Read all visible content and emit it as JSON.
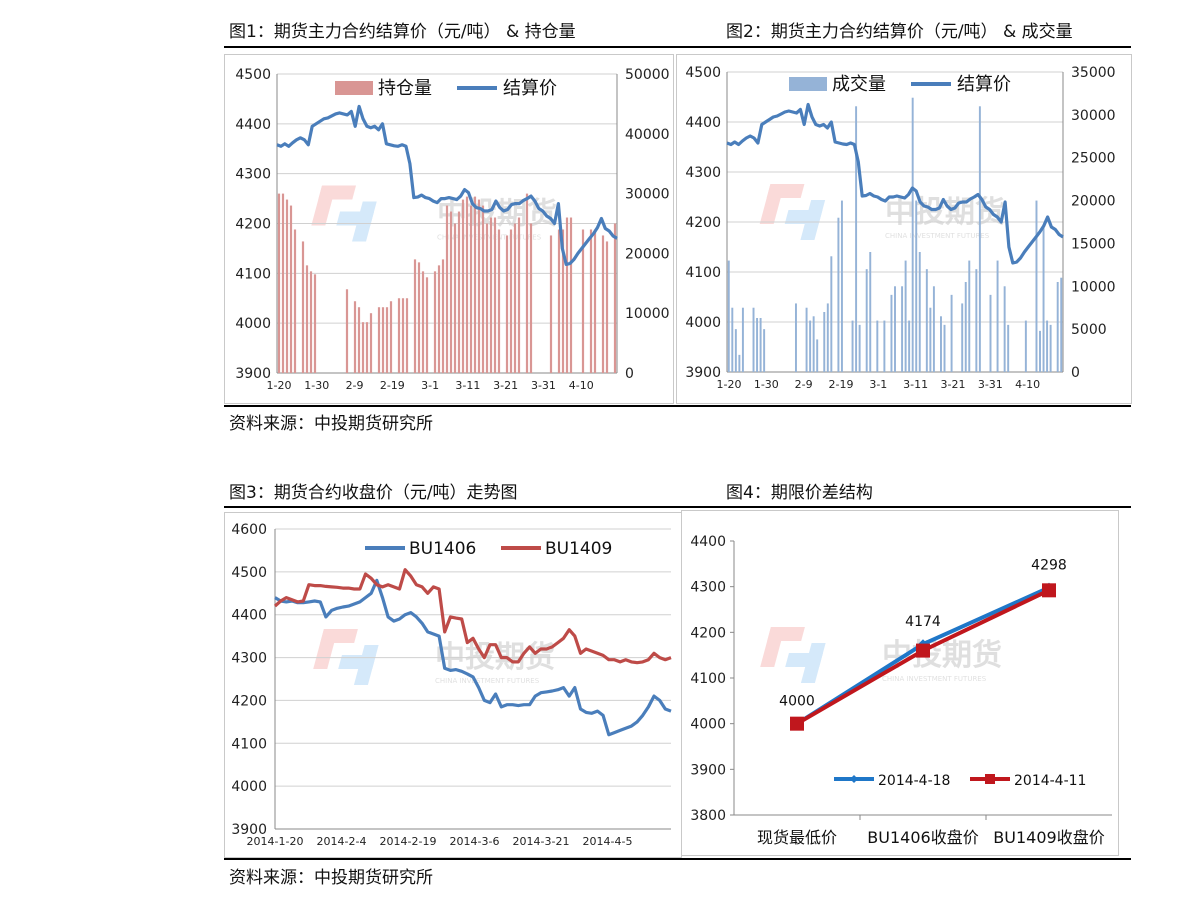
{
  "titles": {
    "fig1": "图1：期货主力合约结算价（元/吨） & 持仓量",
    "fig2": "图2：期货主力合约结算价（元/吨） & 成交量",
    "fig3": "图3：期货合约收盘价（元/吨）走势图",
    "fig4": "图4：期限价差结构"
  },
  "source": "资料来源：中投期货研究所",
  "watermark": {
    "cn": "中投期货",
    "en": "CHINA INVESTMENT FUTURES"
  },
  "colors": {
    "blue": "#4a7ebb",
    "pink": "#d99694",
    "lightblue": "#95b3d7",
    "red": "#be4b48",
    "blue4": "#1f77c8",
    "red4": "#c0171d"
  },
  "chart_data": [
    {
      "id": "fig1",
      "type": "bar",
      "y_left": {
        "min": 3900,
        "max": 4500,
        "ticks": [
          "3900",
          "4000",
          "4100",
          "4200",
          "4300",
          "4400",
          "4500"
        ]
      },
      "y_right": {
        "min": 0,
        "max": 50000,
        "ticks": [
          "0",
          "10000",
          "20000",
          "30000",
          "40000",
          "50000"
        ]
      },
      "x_ticks": [
        "1-20",
        "1-30",
        "2-9",
        "2-19",
        "3-1",
        "3-11",
        "3-21",
        "3-31",
        "4-10"
      ],
      "series": [
        {
          "name": "持仓量",
          "axis": "right",
          "kind": "bar",
          "values": [
            30000,
            30000,
            29000,
            28000,
            24000,
            null,
            22000,
            18000,
            17000,
            16500,
            null,
            null,
            null,
            null,
            null,
            null,
            null,
            14000,
            null,
            12000,
            11000,
            8500,
            8500,
            10000,
            null,
            11000,
            11000,
            11000,
            12000,
            null,
            12500,
            12500,
            12500,
            null,
            19000,
            18500,
            17000,
            16000,
            null,
            17000,
            18000,
            19000,
            28000,
            27000,
            25000,
            27000,
            29000,
            29500,
            28000,
            29500,
            29000,
            28000,
            25000,
            26000,
            26000,
            24000,
            null,
            23000,
            24000,
            25000,
            26000,
            null,
            30000,
            25000,
            null,
            null,
            null,
            null,
            23000,
            null,
            24000,
            24000,
            26000,
            26000,
            null,
            null,
            24000,
            null,
            24000,
            24000,
            null,
            23000,
            22000,
            null,
            25000
          ],
          "color": "#d99694"
        },
        {
          "name": "结算价",
          "axis": "left",
          "kind": "line",
          "values": [
            4358,
            4355,
            4360,
            4355,
            4362,
            4368,
            4372,
            4368,
            4358,
            4395,
            4400,
            4405,
            4410,
            4412,
            4416,
            4420,
            4422,
            4420,
            4418,
            4425,
            4395,
            4435,
            4410,
            4395,
            4392,
            4395,
            4388,
            4400,
            4360,
            4358,
            4356,
            4355,
            4358,
            4355,
            4320,
            4252,
            4253,
            4257,
            4252,
            4250,
            4245,
            4242,
            4250,
            4250,
            4252,
            4250,
            4248,
            4255,
            4268,
            4262,
            4240,
            4232,
            4230,
            4225,
            4225,
            4228,
            4245,
            4232,
            4225,
            4228,
            4238,
            4240,
            4240,
            4246,
            4250,
            4255,
            4245,
            4230,
            4225,
            4215,
            4210,
            4200,
            4240,
            4150,
            4118,
            4120,
            4128,
            4140,
            4150,
            4160,
            4170,
            4180,
            4192,
            4210,
            4190,
            4185,
            4175,
            4170
          ],
          "color": "#4a7ebb"
        }
      ]
    },
    {
      "id": "fig2",
      "type": "bar",
      "y_left": {
        "min": 3900,
        "max": 4500,
        "ticks": [
          "3900",
          "4000",
          "4100",
          "4200",
          "4300",
          "4400",
          "4500"
        ]
      },
      "y_right": {
        "min": 0,
        "max": 35000,
        "ticks": [
          "0",
          "5000",
          "10000",
          "15000",
          "20000",
          "25000",
          "30000",
          "35000"
        ]
      },
      "x_ticks": [
        "1-20",
        "1-30",
        "2-9",
        "2-19",
        "3-1",
        "3-11",
        "3-21",
        "3-31",
        "4-10"
      ],
      "series": [
        {
          "name": "成交量",
          "axis": "right",
          "kind": "bar",
          "values": [
            13000,
            7500,
            5000,
            2000,
            7500,
            null,
            null,
            7500,
            6300,
            6300,
            5000,
            null,
            null,
            null,
            null,
            null,
            null,
            null,
            null,
            8000,
            null,
            null,
            7500,
            6000,
            6500,
            3800,
            null,
            7000,
            8000,
            13500,
            null,
            18000,
            20000,
            null,
            null,
            6000,
            31000,
            5500,
            null,
            12000,
            14000,
            null,
            6000,
            null,
            6000,
            null,
            9000,
            10000,
            null,
            10000,
            13000,
            6000,
            32000,
            20000,
            14000,
            null,
            12000,
            7500,
            10000,
            null,
            6500,
            5500,
            null,
            9000,
            null,
            null,
            8000,
            10500,
            13000,
            null,
            12000,
            31000,
            null,
            null,
            9000,
            null,
            13000,
            null,
            10000,
            5500,
            null,
            null,
            null,
            null,
            6000,
            null,
            null,
            20000,
            4800,
            17000,
            6000,
            5500,
            null,
            10500,
            11000
          ],
          "color": "#95b3d7"
        },
        {
          "name": "结算价",
          "axis": "left",
          "kind": "line",
          "values": [
            4358,
            4355,
            4360,
            4355,
            4362,
            4368,
            4372,
            4368,
            4358,
            4395,
            4400,
            4405,
            4410,
            4412,
            4416,
            4420,
            4422,
            4420,
            4418,
            4425,
            4395,
            4435,
            4410,
            4395,
            4392,
            4395,
            4388,
            4400,
            4360,
            4358,
            4356,
            4355,
            4358,
            4355,
            4320,
            4252,
            4253,
            4257,
            4252,
            4250,
            4245,
            4242,
            4250,
            4250,
            4252,
            4250,
            4248,
            4255,
            4268,
            4262,
            4240,
            4232,
            4230,
            4225,
            4225,
            4228,
            4245,
            4232,
            4225,
            4228,
            4238,
            4240,
            4240,
            4246,
            4250,
            4255,
            4245,
            4230,
            4225,
            4215,
            4210,
            4200,
            4240,
            4150,
            4118,
            4120,
            4128,
            4140,
            4150,
            4160,
            4170,
            4180,
            4192,
            4210,
            4190,
            4185,
            4175,
            4170
          ],
          "color": "#4a7ebb"
        }
      ]
    },
    {
      "id": "fig3",
      "type": "line",
      "y_left": {
        "min": 3900,
        "max": 4600,
        "ticks": [
          "3900",
          "4000",
          "4100",
          "4200",
          "4300",
          "4400",
          "4500",
          "4600"
        ]
      },
      "x_ticks": [
        "2014-1-20",
        "2014-2-4",
        "2014-2-19",
        "2014-3-6",
        "2014-3-21",
        "2014-4-5"
      ],
      "series": [
        {
          "name": "BU1406",
          "values": [
            4440,
            4432,
            4430,
            4432,
            4428,
            4428,
            4430,
            4432,
            4430,
            4395,
            4410,
            4415,
            4418,
            4420,
            4425,
            4430,
            4440,
            4450,
            4480,
            4440,
            4395,
            4385,
            4390,
            4400,
            4405,
            4395,
            4380,
            4360,
            4355,
            4350,
            4275,
            4270,
            4272,
            4268,
            4262,
            4255,
            4230,
            4200,
            4195,
            4215,
            4185,
            4190,
            4190,
            4188,
            4190,
            4190,
            4210,
            4218,
            4220,
            4222,
            4225,
            4230,
            4210,
            4230,
            4180,
            4172,
            4170,
            4175,
            4165,
            4120,
            4125,
            4130,
            4135,
            4140,
            4150,
            4165,
            4185,
            4210,
            4200,
            4180,
            4175
          ],
          "color": "#4a7ebb"
        },
        {
          "name": "BU1409",
          "values": [
            4420,
            4432,
            4440,
            4435,
            4430,
            4432,
            4470,
            4468,
            4468,
            4466,
            4465,
            4464,
            4462,
            4462,
            4460,
            4460,
            4495,
            4485,
            4470,
            4465,
            4470,
            4465,
            4460,
            4505,
            4490,
            4470,
            4465,
            4450,
            4465,
            4460,
            4360,
            4395,
            4392,
            4390,
            4335,
            4345,
            4320,
            4300,
            4330,
            4330,
            4300,
            4300,
            4290,
            4290,
            4310,
            4325,
            4310,
            4320,
            4320,
            4325,
            4335,
            4345,
            4365,
            4350,
            4310,
            4320,
            4315,
            4310,
            4305,
            4295,
            4295,
            4290,
            4295,
            4290,
            4288,
            4290,
            4295,
            4310,
            4300,
            4295,
            4300
          ],
          "color": "#be4b48"
        }
      ]
    },
    {
      "id": "fig4",
      "type": "line",
      "y_left": {
        "min": 3800,
        "max": 4400,
        "ticks": [
          "3800",
          "3900",
          "4000",
          "4100",
          "4200",
          "4300",
          "4400"
        ]
      },
      "categories": [
        "现货最低价",
        "BU1406收盘价",
        "BU1409收盘价"
      ],
      "series": [
        {
          "name": "2014-4-18",
          "values": [
            4000,
            4174,
            4298
          ],
          "color": "#1f77c8"
        },
        {
          "name": "2014-4-11",
          "values": [
            4000,
            4160,
            4292
          ],
          "color": "#c0171d"
        }
      ],
      "data_labels": [
        "4000",
        "4174",
        "4298"
      ]
    }
  ]
}
